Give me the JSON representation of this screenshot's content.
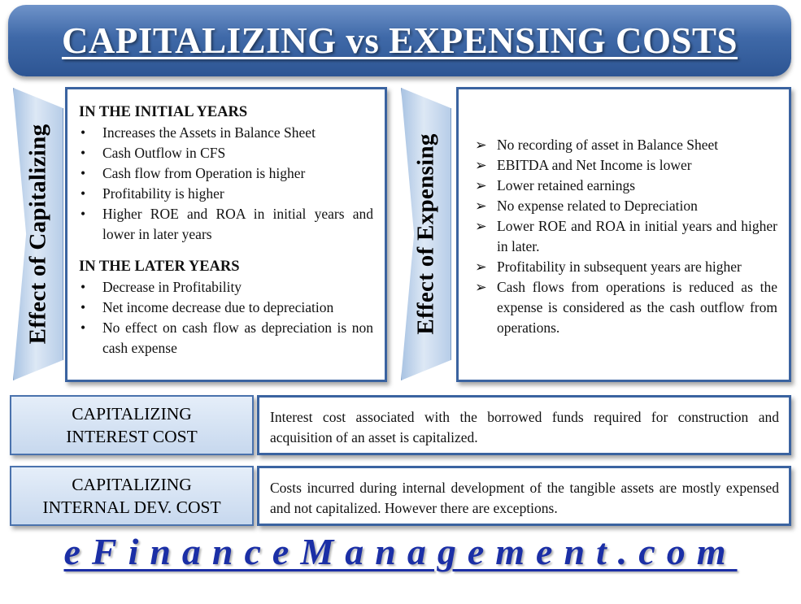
{
  "title": "CAPITALIZING vs EXPENSING COSTS",
  "capitalizing": {
    "ribbon_label": "Effect of Capitalizing",
    "initial_heading": "IN THE INITIAL YEARS",
    "initial_items": [
      "Increases the Assets in Balance Sheet",
      "Cash Outflow in CFS",
      "Cash flow from Operation is higher",
      "Profitability is higher",
      "Higher ROE and ROA in initial years and lower in later years"
    ],
    "later_heading": "IN THE LATER YEARS",
    "later_items": [
      "Decrease in Profitability",
      "Net income decrease due to depreciation",
      "No effect on cash flow as depreciation is non cash expense"
    ]
  },
  "expensing": {
    "ribbon_label": "Effect of Expensing",
    "items": [
      "No recording of asset in Balance Sheet",
      "EBITDA and Net Income is lower",
      "Lower retained earnings",
      "No expense related to Depreciation",
      "Lower ROE and ROA in initial years and higher in later.",
      "Profitability in subsequent years are higher",
      "Cash flows from operations is reduced as the expense is considered as the cash outflow from operations."
    ]
  },
  "interest_cost": {
    "label_line1": "CAPITALIZING",
    "label_line2": "INTEREST COST",
    "description": "Interest cost associated with the borrowed funds required for construction and acquisition of an asset is capitalized."
  },
  "internal_dev_cost": {
    "label_line1": "CAPITALIZING",
    "label_line2": "INTERNAL DEV. COST",
    "description": "Costs incurred during internal development of the tangible assets are mostly expensed and not capitalized. However there are exceptions."
  },
  "footer": "eFinanceManagement.com",
  "symbols": {
    "bullet": "•",
    "arrow": "➢"
  }
}
